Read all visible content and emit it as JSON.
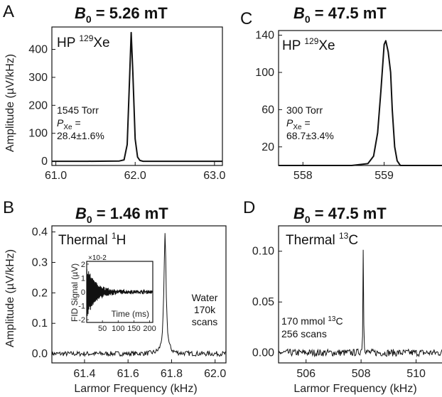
{
  "chart_data": [
    {
      "panel": "A",
      "type": "line",
      "title_var": "B",
      "title_sub": "0",
      "title_rest": " = 5.26 mT",
      "ylabel": "Amplitude (µV/kHz)",
      "xlabel": "",
      "xlim": [
        60.95,
        63.1
      ],
      "ylim": [
        -15,
        480
      ],
      "xticks": [
        "61.0",
        "62.0",
        "63.0"
      ],
      "xtick_values": [
        61.0,
        62.0,
        63.0
      ],
      "yticks": [
        "0",
        "100",
        "200",
        "300",
        "400"
      ],
      "ytick_values": [
        0,
        100,
        200,
        300,
        400
      ],
      "annotation_nucleus_prefix": "HP ",
      "annotation_nucleus_sup": "129",
      "annotation_nucleus_element": "Xe",
      "annotation_lines": [
        "1545 Torr"
      ],
      "annotation_pol_var": "P",
      "annotation_pol_sub": "Xe",
      "annotation_pol_eq": " =",
      "annotation_pol_value": "28.4±1.6%",
      "series": [
        {
          "x": [
            60.95,
            61.4,
            61.8,
            61.86,
            61.9,
            61.93,
            61.95,
            61.97,
            62.0,
            62.03,
            62.06,
            62.1,
            62.5,
            63.1
          ],
          "y": [
            0,
            0,
            1,
            5,
            60,
            300,
            460,
            320,
            80,
            15,
            3,
            0,
            0,
            0
          ]
        }
      ]
    },
    {
      "panel": "C",
      "type": "line",
      "title_var": "B",
      "title_sub": "0",
      "title_rest": " = 47.5 mT",
      "ylabel": "",
      "xlabel": "",
      "xlim": [
        557.7,
        559.8
      ],
      "ylim": [
        0,
        145
      ],
      "xticks": [
        "558",
        "559"
      ],
      "xtick_values": [
        558,
        559
      ],
      "yticks": [
        "20",
        "60",
        "100",
        "140"
      ],
      "ytick_values": [
        20,
        60,
        100,
        140
      ],
      "annotation_nucleus_prefix": "HP ",
      "annotation_nucleus_sup": "129",
      "annotation_nucleus_element": "Xe",
      "annotation_lines": [
        "300 Torr"
      ],
      "annotation_pol_var": "P",
      "annotation_pol_sub": "Xe",
      "annotation_pol_eq": " =",
      "annotation_pol_value": "68.7±3.4%",
      "series": [
        {
          "x": [
            557.7,
            558.6,
            558.8,
            558.87,
            558.92,
            558.96,
            559.0,
            559.02,
            559.05,
            559.08,
            559.1,
            559.13,
            559.16,
            559.2,
            559.8
          ],
          "y": [
            0,
            0,
            2,
            10,
            35,
            80,
            130,
            134,
            122,
            100,
            60,
            20,
            5,
            0,
            0
          ]
        }
      ]
    },
    {
      "panel": "B",
      "type": "line",
      "title_var": "B",
      "title_sub": "0",
      "title_rest": " = 1.46 mT",
      "ylabel": "Amplitude (µV/kHz)",
      "xlabel": "Larmor Frequency (kHz)",
      "xlim": [
        61.25,
        62.05
      ],
      "ylim": [
        -0.03,
        0.42
      ],
      "xticks": [
        "61.4",
        "61.6",
        "61.8",
        "62.0"
      ],
      "xtick_values": [
        61.4,
        61.6,
        61.8,
        62.0
      ],
      "yticks": [
        "0.0",
        "0.1",
        "0.2",
        "0.3",
        "0.4"
      ],
      "ytick_values": [
        0.0,
        0.1,
        0.2,
        0.3,
        0.4
      ],
      "annotation_nucleus_prefix": "Thermal ",
      "annotation_nucleus_sup": "1",
      "annotation_nucleus_element": "H",
      "annotation_lines": [
        "Water",
        "170k",
        "scans"
      ],
      "peak_center": 61.77,
      "peak_height": 0.39,
      "noise_level": 0.008,
      "inset": {
        "multiplier": "×10-2",
        "ylabel": "FID Signal (µV)",
        "xlabel": "Time (ms)",
        "xlim": [
          0,
          210
        ],
        "ylim": [
          -2.2,
          2.2
        ],
        "xticks": [
          "50",
          "100",
          "150",
          "200"
        ],
        "xtick_values": [
          50,
          100,
          150,
          200
        ],
        "yticks": [
          "2",
          "1",
          "0",
          "-1",
          "-2"
        ],
        "ytick_values": [
          2,
          1,
          0,
          -1,
          -2
        ],
        "initial_amplitude": 1.8,
        "decay_ms": 30
      }
    },
    {
      "panel": "D",
      "type": "line",
      "title_var": "B",
      "title_sub": "0",
      "title_rest": " = 47.5 mT",
      "ylabel": "",
      "xlabel": "Larmor Frequency (kHz)",
      "xlim": [
        505.0,
        511.2
      ],
      "ylim": [
        -0.01,
        0.125
      ],
      "xticks": [
        "506",
        "508",
        "510"
      ],
      "xtick_values": [
        506,
        508,
        510
      ],
      "yticks": [
        "0.00",
        "0.05",
        "0.10"
      ],
      "ytick_values": [
        0.0,
        0.05,
        0.1
      ],
      "annotation_nucleus_prefix": "Thermal ",
      "annotation_nucleus_sup": "13",
      "annotation_nucleus_element": "C",
      "annotation_conc_prefix": "170 mmol ",
      "annotation_conc_sup": "13",
      "annotation_conc_element": "C",
      "annotation_lines": [
        "256 scans"
      ],
      "peak_center": 508.08,
      "peak_height": 0.112,
      "noise_level": 0.0035
    }
  ]
}
